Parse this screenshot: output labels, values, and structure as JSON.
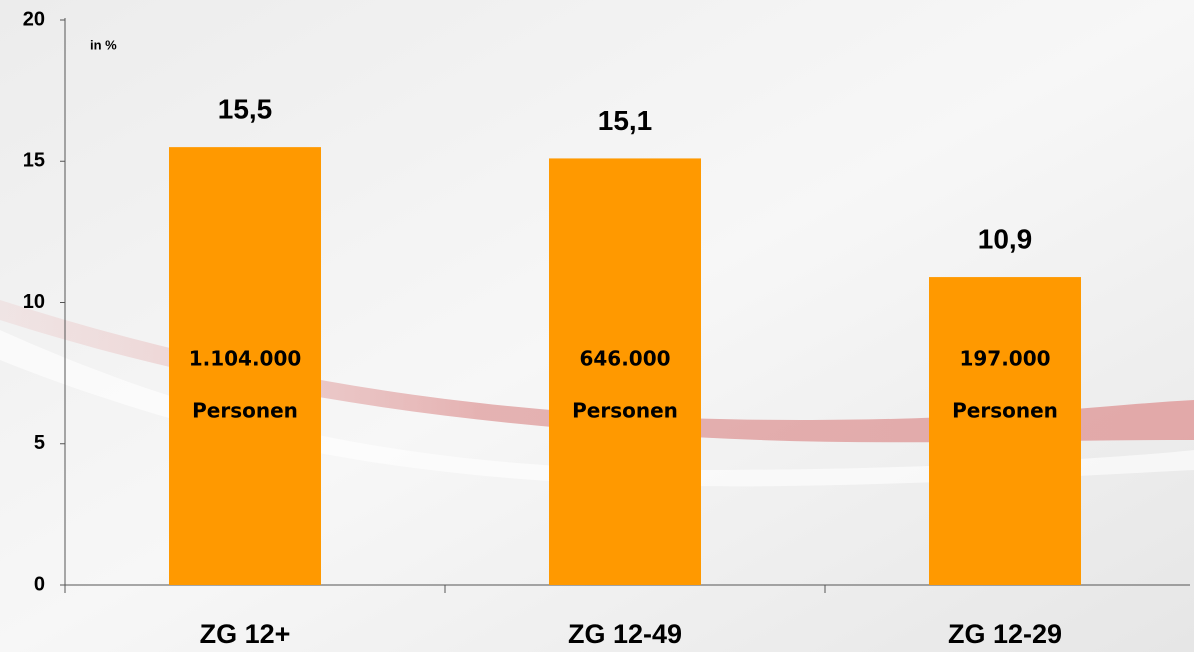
{
  "chart_data": {
    "type": "bar",
    "y_unit_label": "in %",
    "categories": [
      "ZG 12+",
      "ZG 12-49",
      "ZG 12-29"
    ],
    "values": [
      15.5,
      15.1,
      10.9
    ],
    "value_labels": [
      "15,5",
      "15,1",
      "10,9"
    ],
    "inner_labels": [
      [
        "1.104.000",
        "Personen"
      ],
      [
        "646.000",
        "Personen"
      ],
      [
        "197.000",
        "Personen"
      ]
    ],
    "color": "#ff9900",
    "ylim": [
      0,
      20
    ],
    "yticks": [
      0,
      5,
      10,
      15,
      20
    ],
    "grid": false
  }
}
